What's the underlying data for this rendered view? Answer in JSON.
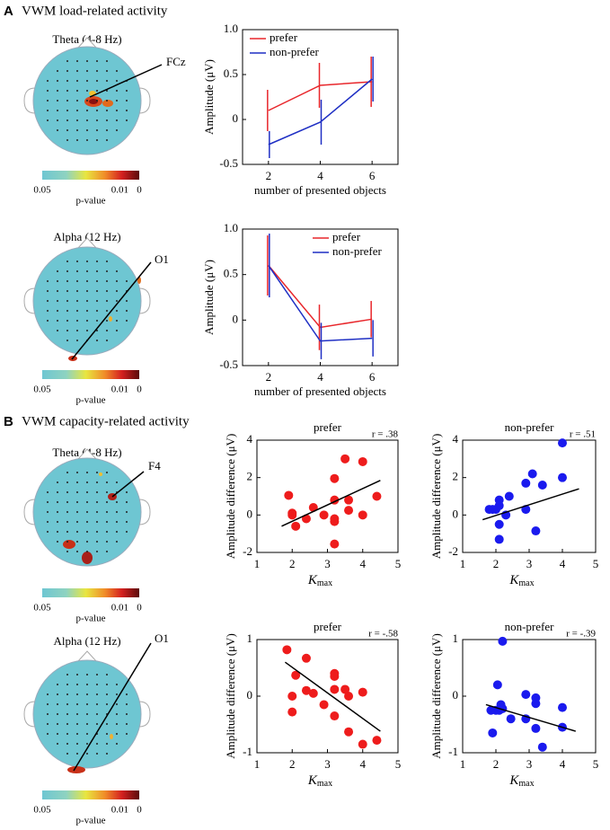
{
  "sections": [
    {
      "label": "A",
      "title": "VWM load-related activity"
    },
    {
      "label": "B",
      "title": "VWM capacity-related activity"
    }
  ],
  "topomaps": [
    {
      "band": "Theta (4-8 Hz)",
      "electrode": "FCz",
      "colorbar": {
        "ticks": [
          "0.05",
          "0.01",
          "0"
        ],
        "label": "p-value"
      }
    },
    {
      "band": "Alpha (12 Hz)",
      "electrode": "O1",
      "colorbar": {
        "ticks": [
          "0.05",
          "0.01",
          "0"
        ],
        "label": "p-value"
      }
    },
    {
      "band": "Theta (4-8 Hz)",
      "electrode": "F4",
      "colorbar": {
        "ticks": [
          "0.05",
          "0.01",
          "0"
        ],
        "label": "p-value"
      }
    },
    {
      "band": "Alpha (12 Hz)",
      "electrode": "O1",
      "colorbar": {
        "ticks": [
          "0.05",
          "0.01",
          "0"
        ],
        "label": "p-value"
      }
    }
  ],
  "chart_data": [
    {
      "type": "line",
      "xlabel": "number of presented objects",
      "ylabel": "Amplitude (μV)",
      "x": [
        2,
        4,
        6
      ],
      "series": [
        {
          "name": "prefer",
          "color": "#e8262b",
          "values": [
            0.1,
            0.38,
            0.42
          ],
          "errors": [
            0.23,
            0.25,
            0.28
          ]
        },
        {
          "name": "non-prefer",
          "color": "#1f2fc4",
          "values": [
            -0.28,
            -0.03,
            0.45
          ],
          "errors": [
            0.15,
            0.25,
            0.25
          ]
        }
      ],
      "xlim": [
        1,
        7
      ],
      "xticks": [
        2,
        4,
        6
      ],
      "ylim": [
        -0.5,
        1
      ],
      "yticks": [
        -0.5,
        0,
        0.5,
        {
          "value": 1,
          "label": "1.0"
        }
      ],
      "legend": "upper left"
    },
    {
      "type": "line",
      "xlabel": "number of presented objects",
      "ylabel": "Amplitude (μV)",
      "x": [
        2,
        4,
        6
      ],
      "series": [
        {
          "name": "prefer",
          "color": "#e8262b",
          "values": [
            0.6,
            -0.08,
            0.01
          ],
          "errors": [
            0.33,
            0.25,
            0.2
          ]
        },
        {
          "name": "non-prefer",
          "color": "#1f2fc4",
          "values": [
            0.6,
            -0.23,
            -0.2
          ],
          "errors": [
            0.35,
            0.2,
            0.2
          ]
        }
      ],
      "xlim": [
        1,
        7
      ],
      "xticks": [
        2,
        4,
        6
      ],
      "ylim": [
        -0.5,
        1
      ],
      "yticks": [
        -0.5,
        0,
        0.5,
        {
          "value": 1,
          "label": "1.0"
        }
      ],
      "legend": "upper right"
    },
    {
      "type": "scatter",
      "title": "prefer",
      "annotation": "r = .38",
      "xlabel": {
        "text": "K",
        "subscript": "max"
      },
      "ylabel": "Amplitude difference (μV)",
      "color": "#ee1c1c",
      "x": [
        1.9,
        2.0,
        2.0,
        2.1,
        2.4,
        2.6,
        2.9,
        3.2,
        3.2,
        3.2,
        3.2,
        3.2,
        3.5,
        3.6,
        3.6,
        4.0,
        4.0,
        4.4
      ],
      "values": [
        1.05,
        0.1,
        0.0,
        -0.6,
        -0.2,
        0.4,
        0.0,
        1.95,
        0.8,
        -0.2,
        -0.35,
        -1.55,
        3.0,
        0.8,
        0.25,
        2.85,
        0.0,
        1.0
      ],
      "fit": [
        [
          1.7,
          -0.6
        ],
        [
          4.5,
          1.85
        ]
      ],
      "xlim": [
        1,
        5
      ],
      "xticks": [
        1,
        2,
        3,
        4,
        5
      ],
      "ylim": [
        -2,
        4
      ],
      "yticks": [
        -2,
        0,
        2,
        4
      ]
    },
    {
      "type": "scatter",
      "title": "non-prefer",
      "annotation": "r = .51",
      "xlabel": {
        "text": "K",
        "subscript": "max"
      },
      "ylabel": "Amplitude difference (μV)",
      "color": "#1a1aee",
      "x": [
        1.8,
        1.9,
        2.0,
        2.1,
        2.1,
        2.1,
        2.1,
        2.4,
        2.3,
        2.9,
        2.9,
        3.1,
        3.2,
        3.4,
        4.0,
        4.0
      ],
      "values": [
        0.3,
        0.3,
        0.3,
        0.5,
        0.8,
        -0.5,
        -1.3,
        1.0,
        0.0,
        1.7,
        0.3,
        2.2,
        -0.85,
        1.6,
        3.85,
        2.0
      ],
      "fit": [
        [
          1.6,
          -0.25
        ],
        [
          4.5,
          1.4
        ]
      ],
      "xlim": [
        1,
        5
      ],
      "xticks": [
        1,
        2,
        3,
        4,
        5
      ],
      "ylim": [
        -2,
        4
      ],
      "yticks": [
        -2,
        0,
        2,
        4
      ]
    },
    {
      "type": "scatter",
      "title": "prefer",
      "annotation": "r = -.58",
      "xlabel": {
        "text": "K",
        "subscript": "max"
      },
      "ylabel": "Amplitude difference (μV)",
      "color": "#ee1c1c",
      "x": [
        1.85,
        2.0,
        2.0,
        2.1,
        2.4,
        2.4,
        2.6,
        2.9,
        3.2,
        3.2,
        3.2,
        3.2,
        3.5,
        3.6,
        3.6,
        4.0,
        4.0,
        4.4
      ],
      "values": [
        0.82,
        0.0,
        -0.28,
        0.37,
        0.67,
        0.1,
        0.05,
        -0.15,
        0.4,
        0.35,
        0.12,
        -0.35,
        0.12,
        -0.63,
        0.0,
        -0.85,
        0.07,
        -0.78
      ],
      "fit": [
        [
          1.8,
          0.6
        ],
        [
          4.5,
          -0.62
        ]
      ],
      "xlim": [
        1,
        5
      ],
      "xticks": [
        1,
        2,
        3,
        4,
        5
      ],
      "ylim": [
        -1,
        1
      ],
      "yticks": [
        -1,
        0,
        1
      ]
    },
    {
      "type": "scatter",
      "title": "non-prefer",
      "annotation": "r = -.39",
      "xlabel": {
        "text": "K",
        "subscript": "max"
      },
      "ylabel": "Amplitude difference (μV)",
      "color": "#1a1aee",
      "x": [
        1.85,
        1.9,
        2.0,
        2.05,
        2.1,
        2.2,
        2.15,
        2.2,
        2.45,
        2.9,
        2.9,
        3.2,
        3.2,
        3.2,
        3.4,
        4.0,
        4.0
      ],
      "values": [
        -0.25,
        -0.65,
        -0.25,
        0.2,
        -0.25,
        0.97,
        -0.15,
        -0.22,
        -0.4,
        0.03,
        -0.4,
        -0.03,
        -0.13,
        -0.57,
        -0.9,
        -0.2,
        -0.55
      ],
      "fit": [
        [
          1.7,
          -0.15
        ],
        [
          4.4,
          -0.62
        ]
      ],
      "xlim": [
        1,
        5
      ],
      "xticks": [
        1,
        2,
        3,
        4,
        5
      ],
      "ylim": [
        -1,
        1
      ],
      "yticks": [
        -1,
        0,
        1
      ]
    }
  ]
}
